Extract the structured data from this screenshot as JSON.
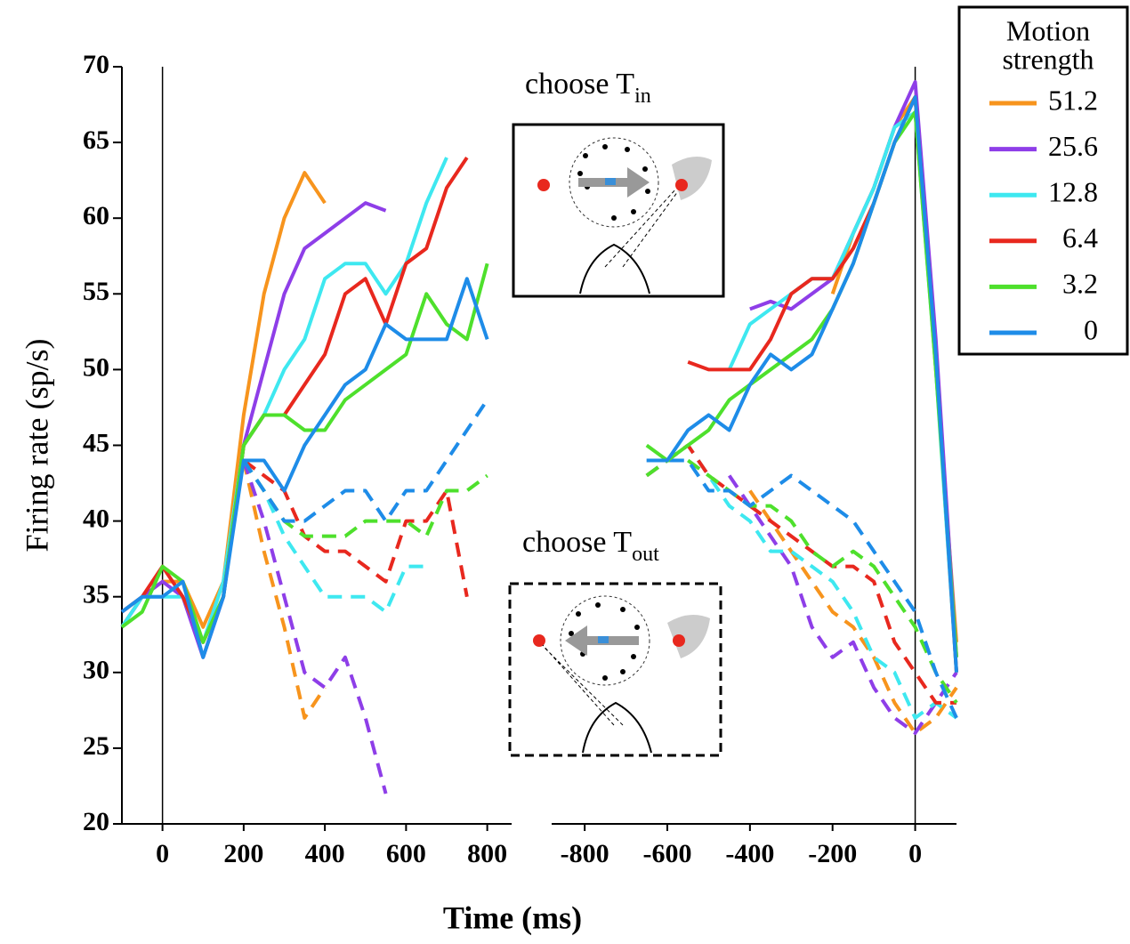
{
  "chart_data": [
    {
      "type": "line",
      "ylabel": "Firing rate (sp/s)",
      "xlabel": "Time (ms)",
      "legend_title": [
        "Motion",
        "strength"
      ],
      "annotations": [
        {
          "text": "choose T",
          "sub": "in"
        },
        {
          "text": "choose T",
          "sub": "out"
        }
      ],
      "xlim": [
        -100,
        860
      ],
      "ylim": [
        20,
        70
      ],
      "xticks": [
        0,
        200,
        400,
        600,
        800
      ],
      "yticks": [
        20,
        25,
        30,
        35,
        40,
        45,
        50,
        55,
        60,
        65,
        70
      ],
      "x": [
        -100,
        -50,
        0,
        50,
        100,
        150,
        200,
        250,
        300,
        350,
        400,
        450,
        500,
        550,
        600,
        650,
        700,
        750,
        800
      ],
      "series": [
        {
          "name": "51.2",
          "color": "#f7941d",
          "values": [
            33,
            35,
            36,
            36,
            33,
            36,
            47,
            55,
            60,
            63,
            61,
            null,
            null,
            null,
            null,
            null,
            null,
            null,
            null
          ],
          "values_out": [
            null,
            null,
            null,
            null,
            null,
            null,
            44,
            38,
            33,
            27,
            29,
            null,
            null,
            null,
            null,
            null,
            null,
            null,
            null
          ]
        },
        {
          "name": "25.6",
          "color": "#8e3ee8",
          "values": [
            33,
            35,
            36,
            35,
            31,
            35,
            45,
            50,
            55,
            58,
            59,
            60,
            61,
            60.5,
            null,
            null,
            null,
            null,
            null
          ],
          "values_out": [
            null,
            null,
            null,
            null,
            null,
            null,
            44,
            40,
            35,
            30,
            29,
            31,
            27,
            22,
            null,
            null,
            null,
            null,
            null
          ]
        },
        {
          "name": "12.8",
          "color": "#3ee8f0",
          "values": [
            33,
            35,
            35,
            35,
            32,
            36,
            45,
            47,
            50,
            52,
            56,
            57,
            57,
            55,
            57,
            61,
            64,
            null,
            null
          ],
          "values_out": [
            null,
            null,
            null,
            null,
            null,
            null,
            44,
            42,
            39,
            37,
            35,
            35,
            35,
            34,
            37,
            37,
            null,
            null,
            null
          ]
        },
        {
          "name": "6.4",
          "color": "#e8281e",
          "values": [
            34,
            35,
            37,
            35,
            32,
            35,
            45,
            47,
            47,
            49,
            51,
            55,
            56,
            53,
            57,
            58,
            62,
            64,
            null
          ],
          "values_out": [
            null,
            null,
            null,
            null,
            null,
            null,
            44,
            43,
            42,
            39,
            38,
            38,
            37,
            36,
            40,
            40,
            42,
            35,
            null
          ]
        },
        {
          "name": "3.2",
          "color": "#4ee02c",
          "values": [
            33,
            34,
            37,
            36,
            32,
            35,
            45,
            47,
            47,
            46,
            46,
            48,
            49,
            50,
            51,
            55,
            53,
            52,
            57
          ],
          "values_out": [
            null,
            null,
            null,
            null,
            null,
            null,
            44,
            42,
            40,
            39,
            39,
            39,
            40,
            40,
            40,
            39,
            42,
            42,
            43
          ]
        },
        {
          "name": "0",
          "color": "#1e8ce8",
          "values": [
            34,
            35,
            35,
            36,
            31,
            35,
            44,
            44,
            42,
            45,
            47,
            49,
            50,
            53,
            52,
            52,
            52,
            56,
            52
          ],
          "values_out": [
            null,
            null,
            null,
            null,
            null,
            null,
            44,
            42,
            40,
            40,
            41,
            42,
            42,
            40,
            42,
            42,
            44,
            46,
            48
          ]
        }
      ]
    },
    {
      "type": "line",
      "xlim": [
        -880,
        100
      ],
      "ylim": [
        20,
        70
      ],
      "xticks": [
        -800,
        -600,
        -400,
        -200,
        0
      ],
      "x": [
        -650,
        -600,
        -550,
        -500,
        -450,
        -400,
        -350,
        -300,
        -250,
        -200,
        -150,
        -100,
        -50,
        0,
        50,
        100
      ],
      "series": [
        {
          "color": "#f7941d",
          "values": [
            null,
            null,
            null,
            null,
            null,
            null,
            null,
            null,
            null,
            55,
            59,
            62,
            66,
            68,
            50,
            32
          ],
          "values_out": [
            null,
            null,
            null,
            null,
            null,
            42,
            40,
            38,
            36,
            34,
            33,
            31,
            28,
            26,
            27,
            29
          ]
        },
        {
          "color": "#8e3ee8",
          "values": [
            null,
            null,
            null,
            null,
            null,
            54,
            54.5,
            54,
            55,
            56,
            59,
            62,
            66,
            69,
            52,
            31
          ],
          "values_out": [
            null,
            null,
            null,
            null,
            43,
            41,
            39,
            37,
            33,
            31,
            32,
            29,
            27,
            26,
            28,
            30
          ]
        },
        {
          "color": "#3ee8f0",
          "values": [
            null,
            null,
            null,
            null,
            50,
            53,
            54,
            55,
            56,
            56,
            59,
            62,
            66,
            67,
            50,
            30
          ],
          "values_out": [
            43,
            44,
            45,
            43,
            41,
            40,
            38,
            38,
            37,
            36,
            34,
            31,
            30,
            27,
            28,
            27
          ]
        },
        {
          "color": "#e8281e",
          "values": [
            null,
            null,
            50.5,
            50,
            50,
            50,
            52,
            55,
            56,
            56,
            58,
            61,
            65,
            68,
            51,
            30
          ],
          "values_out": [
            43,
            44,
            45,
            43,
            42,
            41,
            40,
            39,
            38,
            37,
            37,
            36,
            32,
            30,
            28,
            28
          ]
        },
        {
          "color": "#4ee02c",
          "values": [
            45,
            44,
            45,
            46,
            48,
            49,
            50,
            51,
            52,
            54,
            57,
            61,
            65,
            67,
            50,
            31
          ],
          "values_out": [
            43,
            44,
            44,
            43,
            42,
            41,
            41,
            40,
            38,
            37,
            38,
            37,
            35,
            33,
            30,
            28
          ]
        },
        {
          "color": "#1e8ce8",
          "values": [
            44,
            44,
            46,
            47,
            46,
            49,
            51,
            50,
            51,
            54,
            57,
            61,
            65,
            68,
            51,
            30
          ],
          "values_out": [
            44,
            44,
            44,
            42,
            42,
            41,
            42,
            43,
            42,
            41,
            40,
            38,
            36,
            34,
            30,
            27
          ]
        }
      ]
    }
  ]
}
